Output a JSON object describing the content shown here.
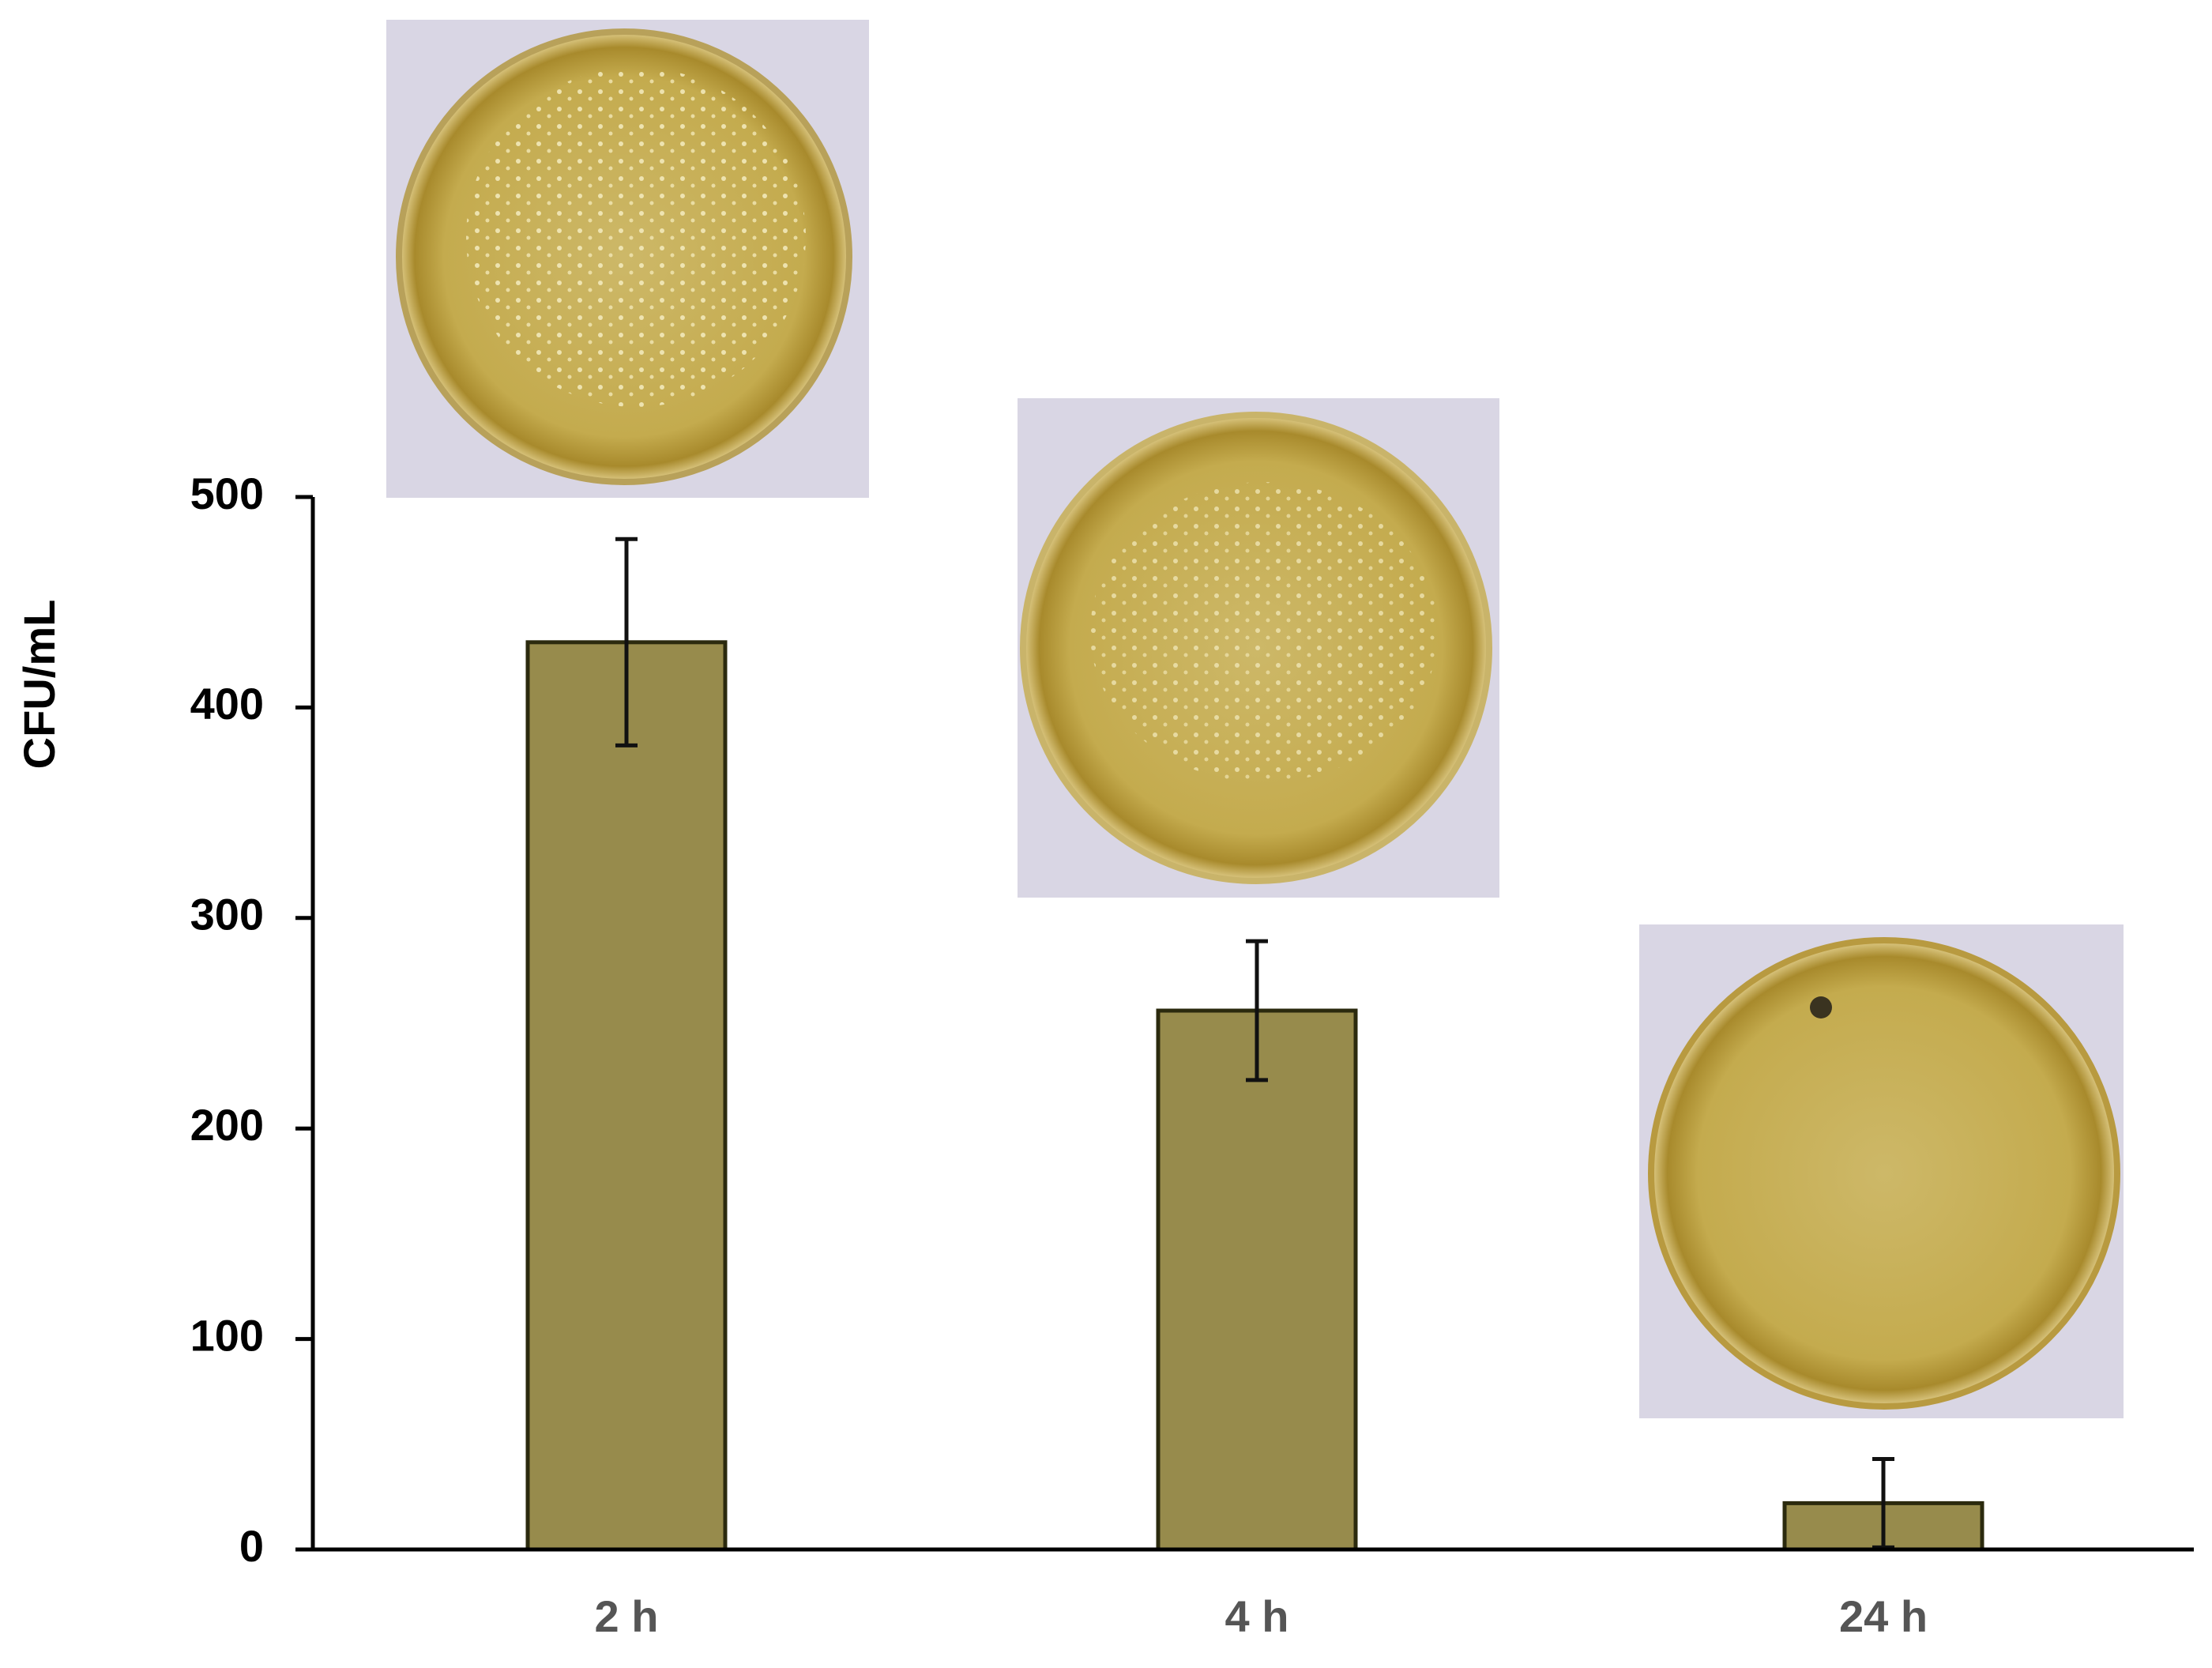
{
  "chart_data": {
    "type": "bar",
    "y_label": "CFU/mL",
    "categories": [
      "2 h",
      "4 h",
      "24 h"
    ],
    "values": [
      431,
      256,
      22
    ],
    "errors": [
      49,
      33,
      21
    ],
    "color": "#978b4c",
    "ylim": [
      0,
      500
    ],
    "yticks": [
      0,
      100,
      200,
      300,
      400,
      500
    ],
    "grid": false
  }
}
